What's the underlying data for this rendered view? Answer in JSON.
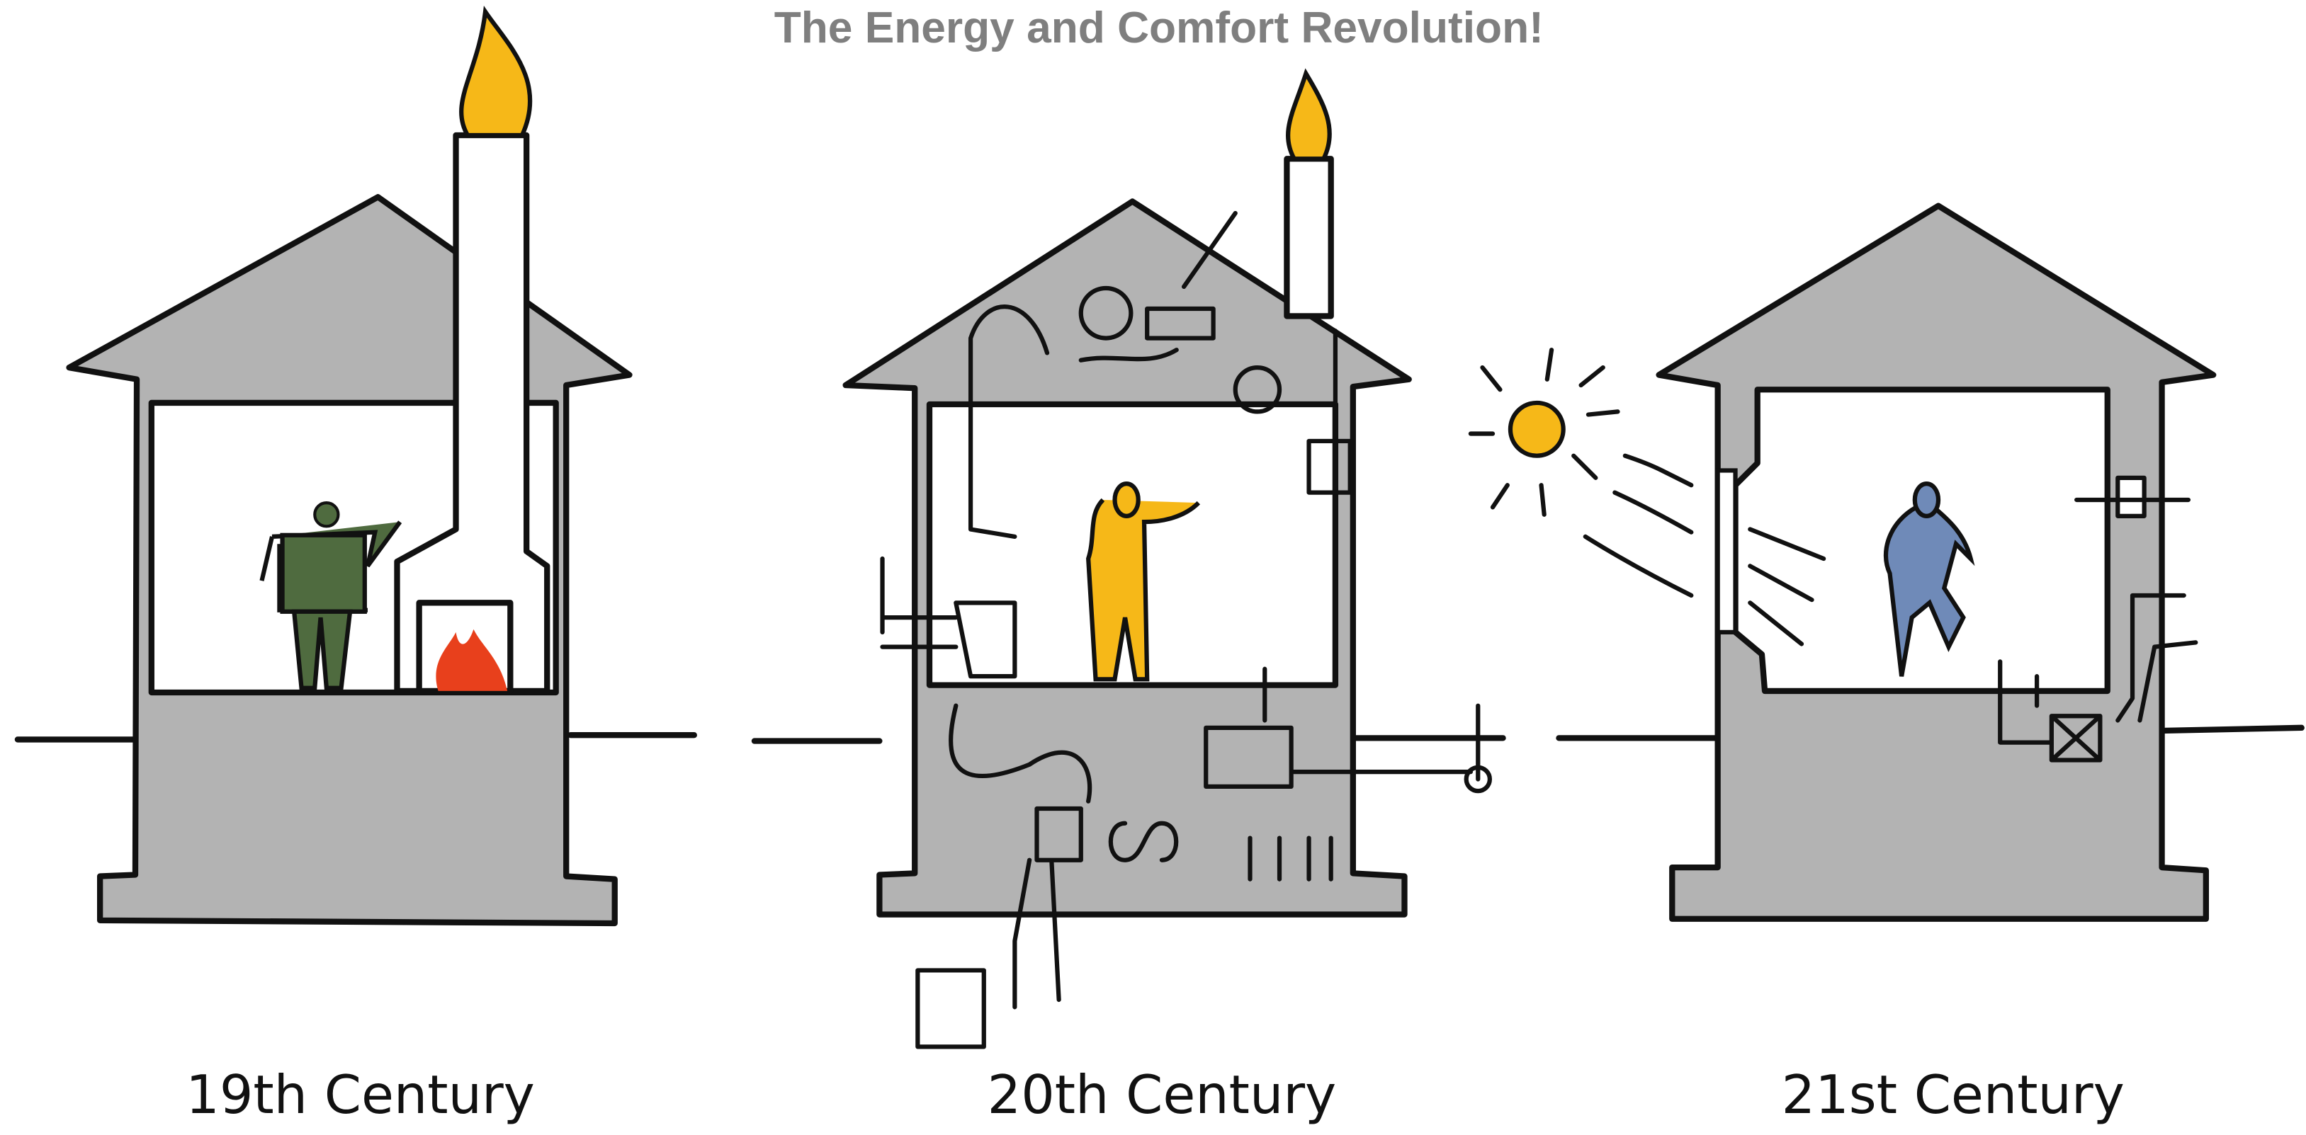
{
  "title": "The Energy and Comfort Revolution!",
  "labels": [
    "19th Century",
    "20th Century",
    "21st Century"
  ]
}
